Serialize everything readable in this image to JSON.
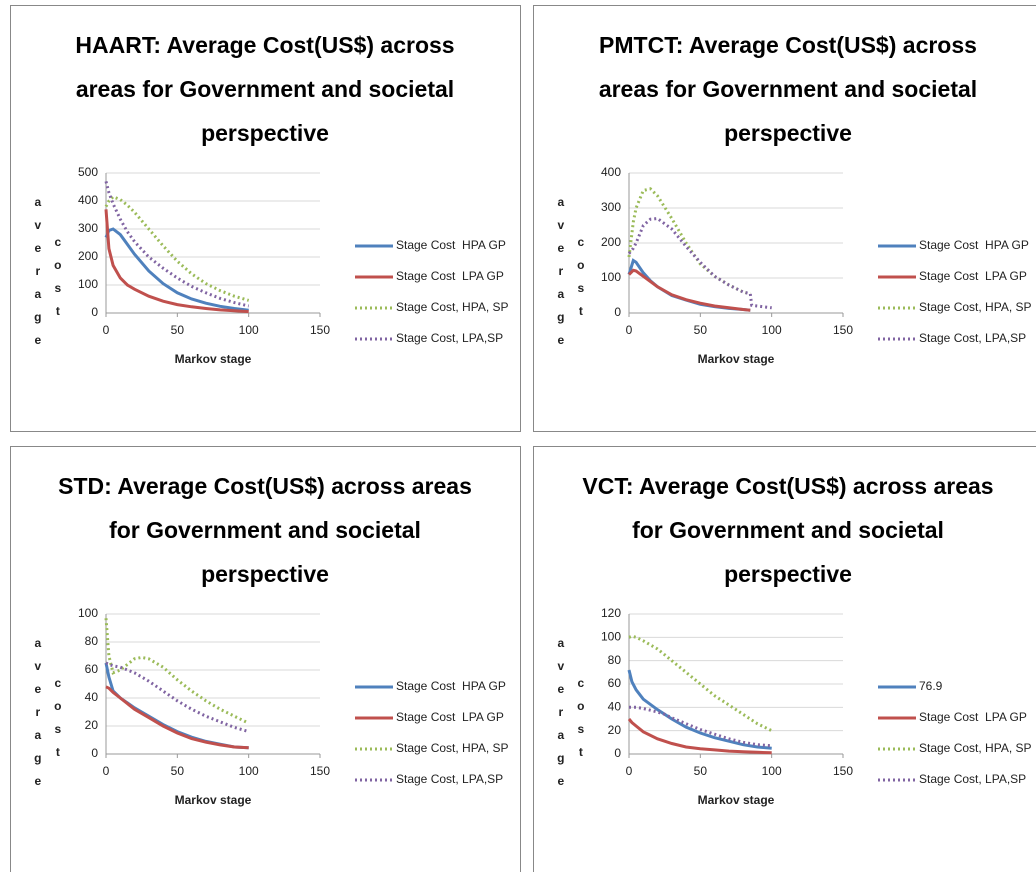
{
  "chart_data": [
    {
      "type": "line",
      "title": [
        "HAART: Average Cost(US$) across",
        "areas for Government and societal",
        "perspective"
      ],
      "ylabel": [
        "average",
        "cost"
      ],
      "xlabel": "Markov stage",
      "x": [
        0,
        2,
        5,
        10,
        15,
        20,
        30,
        40,
        50,
        60,
        70,
        80,
        90,
        100
      ],
      "xlim": [
        0,
        150
      ],
      "xticks": [
        0,
        50,
        100,
        150
      ],
      "ylim": [
        0,
        500
      ],
      "yticks": [
        0,
        100,
        200,
        300,
        400,
        500
      ],
      "grid": true,
      "legend": "right",
      "series": [
        {
          "name": "Stage Cost  HPA GP",
          "color": "#4f81bd",
          "dash": false,
          "values": [
            270,
            295,
            300,
            280,
            245,
            210,
            150,
            105,
            72,
            50,
            35,
            24,
            16,
            10
          ]
        },
        {
          "name": "Stage Cost  LPA GP",
          "color": "#c0504d",
          "dash": false,
          "values": [
            370,
            230,
            170,
            125,
            100,
            85,
            60,
            42,
            30,
            22,
            16,
            11,
            8,
            5
          ]
        },
        {
          "name": "Stage Cost, HPA, SP",
          "color": "#9bbb59",
          "dash": true,
          "values": [
            380,
            400,
            415,
            405,
            385,
            360,
            300,
            240,
            185,
            140,
            105,
            80,
            60,
            45
          ]
        },
        {
          "name": "Stage Cost, LPA,SP",
          "color": "#8064a2",
          "dash": true,
          "values": [
            470,
            430,
            390,
            335,
            290,
            255,
            200,
            160,
            125,
            95,
            72,
            52,
            37,
            25
          ]
        }
      ]
    },
    {
      "type": "line",
      "title": [
        "PMTCT: Average Cost(US$) across",
        "areas for Government and societal",
        "perspective"
      ],
      "ylabel": [
        "average",
        "cost"
      ],
      "xlabel": "Markov stage",
      "x": [
        0,
        3,
        5,
        10,
        15,
        20,
        30,
        40,
        50,
        60,
        70,
        80,
        85,
        86,
        90,
        100
      ],
      "xlim": [
        0,
        150
      ],
      "xticks": [
        0,
        50,
        100,
        150
      ],
      "ylim": [
        0,
        400
      ],
      "yticks": [
        0,
        100,
        200,
        300,
        400
      ],
      "grid": true,
      "legend": "right",
      "series": [
        {
          "name": "Stage Cost  HPA GP",
          "color": "#4f81bd",
          "dash": false,
          "values": [
            110,
            150,
            145,
            115,
            92,
            75,
            50,
            37,
            25,
            18,
            13,
            10,
            8,
            null,
            null,
            null
          ]
        },
        {
          "name": "Stage Cost  LPA GP",
          "color": "#c0504d",
          "dash": false,
          "values": [
            110,
            122,
            120,
            105,
            90,
            75,
            52,
            38,
            28,
            20,
            15,
            10,
            8,
            null,
            null,
            null
          ]
        },
        {
          "name": "Stage Cost, HPA, SP",
          "color": "#9bbb59",
          "dash": true,
          "values": [
            160,
            260,
            300,
            350,
            355,
            335,
            270,
            200,
            140,
            105,
            80,
            60,
            55,
            null,
            null,
            null
          ]
        },
        {
          "name": "Stage Cost, LPA,SP",
          "color": "#8064a2",
          "dash": true,
          "values": [
            170,
            185,
            200,
            250,
            268,
            270,
            240,
            190,
            145,
            105,
            80,
            60,
            55,
            22,
            20,
            15
          ]
        }
      ]
    },
    {
      "type": "line",
      "title": [
        "STD: Average Cost(US$) across areas",
        "for Government and societal",
        "perspective"
      ],
      "ylabel": [
        "average",
        "cost"
      ],
      "xlabel": "Markov stage",
      "x": [
        0,
        2,
        5,
        10,
        20,
        25,
        30,
        40,
        50,
        60,
        70,
        80,
        90,
        100
      ],
      "xlim": [
        0,
        150
      ],
      "xticks": [
        0,
        50,
        100,
        150
      ],
      "ylim": [
        0,
        100
      ],
      "yticks": [
        0,
        20,
        40,
        60,
        80,
        100
      ],
      "grid": true,
      "legend": "right",
      "series": [
        {
          "name": "Stage Cost  HPA GP",
          "color": "#4f81bd",
          "dash": false,
          "values": [
            65,
            55,
            45,
            40,
            33,
            30,
            27,
            21,
            16,
            12,
            9,
            7,
            5,
            4.5
          ]
        },
        {
          "name": "Stage Cost  LPA GP",
          "color": "#c0504d",
          "dash": false,
          "values": [
            48,
            47,
            44,
            40,
            32,
            29,
            26,
            20,
            15,
            11,
            8.5,
            6.5,
            5,
            4.5
          ]
        },
        {
          "name": "Stage Cost, HPA, SP",
          "color": "#9bbb59",
          "dash": true,
          "values": [
            97,
            70,
            58,
            60,
            68,
            69,
            68,
            62,
            53,
            45,
            38,
            32,
            27,
            22
          ]
        },
        {
          "name": "Stage Cost, LPA,SP",
          "color": "#8064a2",
          "dash": true,
          "values": [
            65,
            64,
            63,
            62,
            58,
            55,
            52,
            45,
            38,
            32,
            27,
            23,
            19,
            16
          ]
        }
      ]
    },
    {
      "type": "line",
      "title": [
        "VCT: Average Cost(US$) across areas",
        "for Government and societal",
        "perspective"
      ],
      "ylabel": [
        "average",
        "cost"
      ],
      "xlabel": "Markov stage",
      "x": [
        0,
        2,
        5,
        10,
        20,
        25,
        30,
        40,
        50,
        60,
        70,
        80,
        90,
        100
      ],
      "xlim": [
        0,
        150
      ],
      "xticks": [
        0,
        50,
        100,
        150
      ],
      "ylim": [
        0,
        120
      ],
      "yticks": [
        0,
        20,
        40,
        60,
        80,
        100,
        120
      ],
      "grid": true,
      "legend": "right",
      "series": [
        {
          "name": "76.9",
          "color": "#4f81bd",
          "dash": false,
          "values": [
            72,
            62,
            55,
            47,
            38,
            34,
            30,
            23,
            18,
            14,
            11,
            8,
            6,
            5
          ]
        },
        {
          "name": "Stage Cost  LPA GP",
          "color": "#c0504d",
          "dash": false,
          "values": [
            30,
            27,
            24,
            19,
            13,
            11,
            9,
            6,
            4.5,
            3.5,
            2.5,
            2,
            1.5,
            1
          ]
        },
        {
          "name": "Stage Cost, HPA, SP",
          "color": "#9bbb59",
          "dash": true,
          "values": [
            100,
            101,
            100,
            97,
            90,
            85,
            80,
            70,
            60,
            50,
            42,
            34,
            26,
            20
          ]
        },
        {
          "name": "Stage Cost, LPA,SP",
          "color": "#8064a2",
          "dash": true,
          "values": [
            40,
            40,
            40,
            39,
            36,
            34,
            31,
            26,
            21,
            17,
            13,
            10,
            8,
            7
          ]
        }
      ]
    }
  ]
}
